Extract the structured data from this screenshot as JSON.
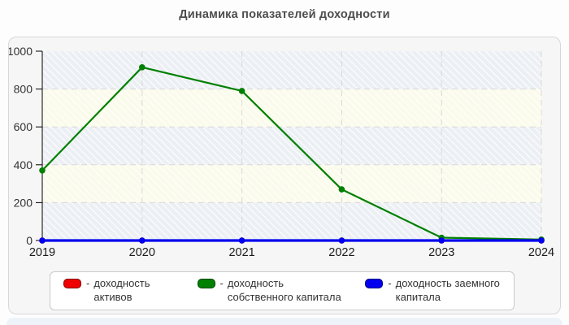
{
  "chart_data": {
    "type": "line",
    "title": "Динамика показателей доходности",
    "x": [
      "2019",
      "2020",
      "2021",
      "2022",
      "2023",
      "2024"
    ],
    "series": [
      {
        "name": "доходность активов",
        "color": "#ee0000",
        "line_width": 3,
        "values": [
          0,
          0,
          0,
          0,
          0,
          0
        ]
      },
      {
        "name": "доходность собственного капитала",
        "color": "#008000",
        "line_width": 2.2,
        "values": [
          370,
          915,
          790,
          270,
          15,
          5
        ]
      },
      {
        "name": "доходность заемного капитала",
        "color": "#0000ee",
        "line_width": 3.2,
        "values": [
          0,
          0,
          0,
          0,
          0,
          0
        ]
      }
    ],
    "legend_prefix": "-",
    "legend_position": "bottom",
    "ylim": [
      0,
      1000
    ],
    "yticks": [
      0,
      200,
      400,
      600,
      800,
      1000
    ],
    "grid": "dashed",
    "style": {
      "band_colors": [
        "#ecf0f4",
        "#fbfbec"
      ],
      "hatch_color": "#ffffff",
      "grid_color": "#d8d8d8",
      "axis_color": "#000000",
      "tick_label_color": "#333333",
      "x_label_color": "#1a1a1a"
    }
  }
}
